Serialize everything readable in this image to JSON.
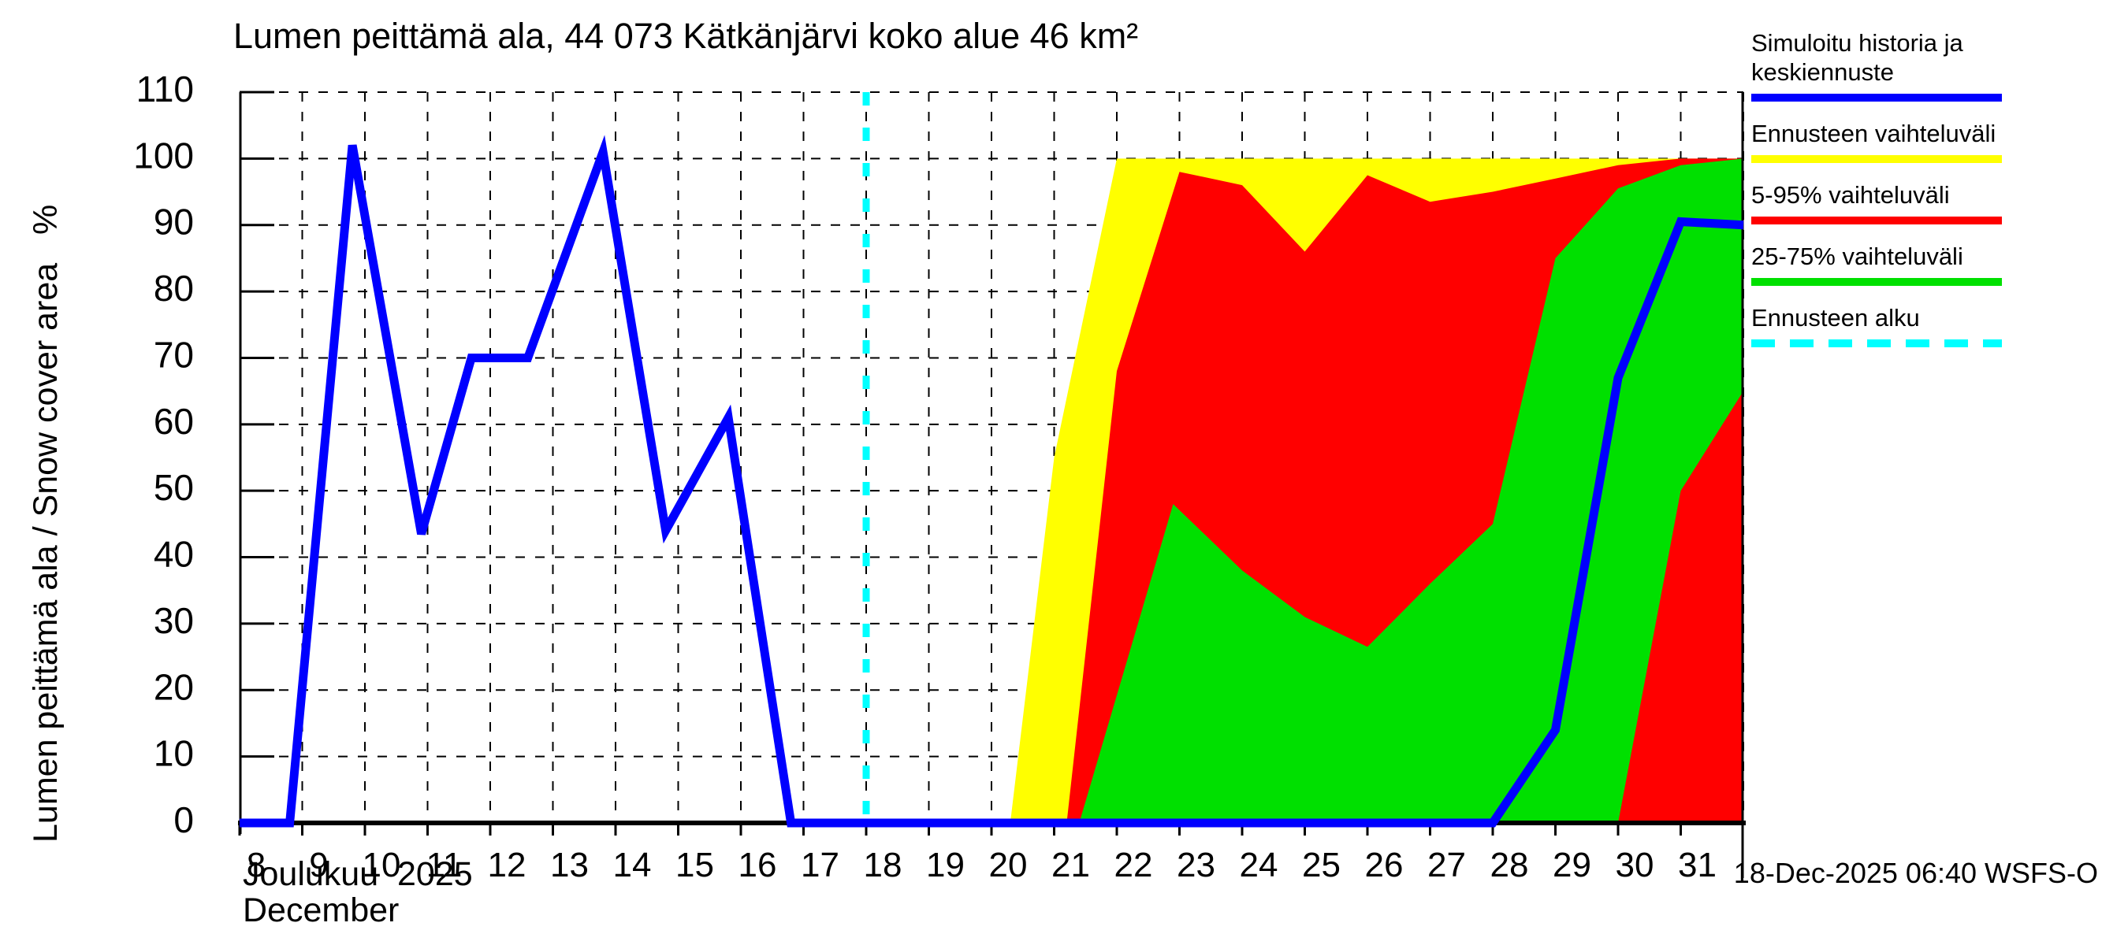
{
  "title": "Lumen peittämä ala, 44 073 Kätkänjärvi koko alue 46 km²",
  "footer": "18-Dec-2025 06:40 WSFS-O",
  "y_axis": {
    "label": "Lumen peittämä ala / Snow cover area   %",
    "ticks": [
      0,
      10,
      20,
      30,
      40,
      50,
      60,
      70,
      80,
      90,
      100,
      110
    ]
  },
  "x_axis": {
    "days": [
      8,
      9,
      10,
      11,
      12,
      13,
      14,
      15,
      16,
      17,
      18,
      19,
      20,
      21,
      22,
      23,
      24,
      25,
      26,
      27,
      28,
      29,
      30,
      31
    ],
    "month_fi": "Joulukuu  2025",
    "month_en": "December"
  },
  "legend": [
    {
      "label": "Simuloitu historia ja keskiennuste",
      "color": "#0000ff",
      "dashed": false
    },
    {
      "label": "Ennusteen vaihteluväli",
      "color": "#ffff00",
      "dashed": false
    },
    {
      "label": "5-95% vaihteluväli",
      "color": "#ff0000",
      "dashed": false
    },
    {
      "label": "25-75% vaihteluväli",
      "color": "#00e000",
      "dashed": false
    },
    {
      "label": "Ennusteen alku",
      "color": "#00ffff",
      "dashed": true
    }
  ],
  "colors": {
    "median_line": "#0000ff",
    "range_band": "#ffff00",
    "band_5_95": "#ff0000",
    "band_25_75": "#00e000",
    "forecast_start": "#00ffff",
    "grid": "#000000",
    "axis": "#000000"
  },
  "chart_data": {
    "type": "line",
    "title": "Lumen peittämä ala, 44 073 Kätkänjärvi koko alue 46 km²",
    "xlabel": "Joulukuu 2025 / December (day of month)",
    "ylabel": "Lumen peittämä ala / Snow cover area %",
    "xlim": [
      8,
      32
    ],
    "ylim": [
      0,
      110
    ],
    "grid": true,
    "legend_position": "right",
    "forecast_start_day": 18,
    "series": [
      {
        "name": "Simuloitu historia ja keskiennuste",
        "color": "#0000ff",
        "points": [
          [
            8,
            0
          ],
          [
            8.8,
            0
          ],
          [
            9.8,
            102
          ],
          [
            10.9,
            43.5
          ],
          [
            11.7,
            70
          ],
          [
            12.6,
            70
          ],
          [
            13.8,
            101
          ],
          [
            14.8,
            44
          ],
          [
            15.8,
            61
          ],
          [
            16.8,
            0
          ],
          [
            18,
            0
          ],
          [
            28,
            0
          ],
          [
            29,
            14
          ],
          [
            30,
            67
          ],
          [
            31,
            90.5
          ],
          [
            32,
            90
          ]
        ]
      }
    ],
    "bands": [
      {
        "name": "Ennusteen vaihteluväli",
        "color": "#ffff00",
        "top": [
          [
            20.3,
            0
          ],
          [
            21,
            55
          ],
          [
            22,
            100
          ],
          [
            31,
            100
          ],
          [
            32,
            100
          ]
        ],
        "bottom": [
          [
            20.3,
            0
          ],
          [
            32,
            0
          ]
        ]
      },
      {
        "name": "5-95% vaihteluväli",
        "color": "#ff0000",
        "top": [
          [
            21.2,
            0
          ],
          [
            22,
            68
          ],
          [
            23,
            98
          ],
          [
            24,
            96
          ],
          [
            25,
            86
          ],
          [
            26,
            97.5
          ],
          [
            27,
            93.5
          ],
          [
            28,
            95
          ],
          [
            29,
            97
          ],
          [
            30,
            99
          ],
          [
            31,
            100
          ],
          [
            32,
            100
          ]
        ],
        "bottom": [
          [
            21.2,
            0
          ],
          [
            32,
            0
          ]
        ]
      },
      {
        "name": "25-75% vaihteluväli",
        "color": "#00e000",
        "top": [
          [
            21.4,
            0
          ],
          [
            22.9,
            48
          ],
          [
            24,
            38
          ],
          [
            25,
            31
          ],
          [
            26,
            26.5
          ],
          [
            27,
            36
          ],
          [
            28,
            45
          ],
          [
            29,
            85
          ],
          [
            30,
            95.5
          ],
          [
            31,
            99
          ],
          [
            32,
            100
          ]
        ],
        "bottom": [
          [
            21.4,
            0
          ],
          [
            30,
            0
          ],
          [
            31,
            50
          ],
          [
            32,
            65
          ]
        ]
      }
    ]
  }
}
